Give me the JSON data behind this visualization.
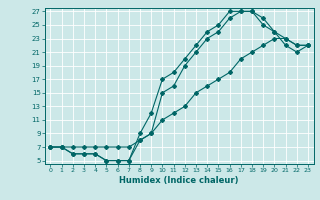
{
  "xlabel": "Humidex (Indice chaleur)",
  "background_color": "#cce8e8",
  "grid_color": "#ffffff",
  "line_color": "#006666",
  "xlim": [
    -0.5,
    23.5
  ],
  "ylim": [
    4.5,
    27.5
  ],
  "xticks": [
    0,
    1,
    2,
    3,
    4,
    5,
    6,
    7,
    8,
    9,
    10,
    11,
    12,
    13,
    14,
    15,
    16,
    17,
    18,
    19,
    20,
    21,
    22,
    23
  ],
  "yticks": [
    5,
    7,
    9,
    11,
    13,
    15,
    17,
    19,
    21,
    23,
    25,
    27
  ],
  "line1_x": [
    0,
    1,
    2,
    3,
    4,
    5,
    6,
    7,
    8,
    9,
    10,
    11,
    12,
    13,
    14,
    15,
    16,
    17,
    18,
    19,
    20,
    21,
    22,
    23
  ],
  "line1_y": [
    7,
    7,
    6,
    6,
    6,
    5,
    5,
    5,
    9,
    12,
    17,
    18,
    20,
    22,
    24,
    25,
    27,
    27,
    27,
    26,
    24,
    23,
    22,
    22
  ],
  "line2_x": [
    0,
    1,
    2,
    3,
    4,
    5,
    6,
    7,
    8,
    9,
    10,
    11,
    12,
    13,
    14,
    15,
    16,
    17,
    18,
    19,
    20,
    21,
    22,
    23
  ],
  "line2_y": [
    7,
    7,
    6,
    6,
    6,
    5,
    5,
    5,
    8,
    9,
    15,
    16,
    19,
    21,
    23,
    24,
    26,
    27,
    27,
    25,
    24,
    22,
    21,
    22
  ],
  "line3_x": [
    0,
    1,
    2,
    3,
    4,
    5,
    6,
    7,
    8,
    9,
    10,
    11,
    12,
    13,
    14,
    15,
    16,
    17,
    18,
    19,
    20,
    21,
    22,
    23
  ],
  "line3_y": [
    7,
    7,
    7,
    7,
    7,
    7,
    7,
    7,
    8,
    9,
    11,
    12,
    13,
    15,
    16,
    17,
    18,
    20,
    21,
    22,
    23,
    23,
    22,
    22
  ]
}
